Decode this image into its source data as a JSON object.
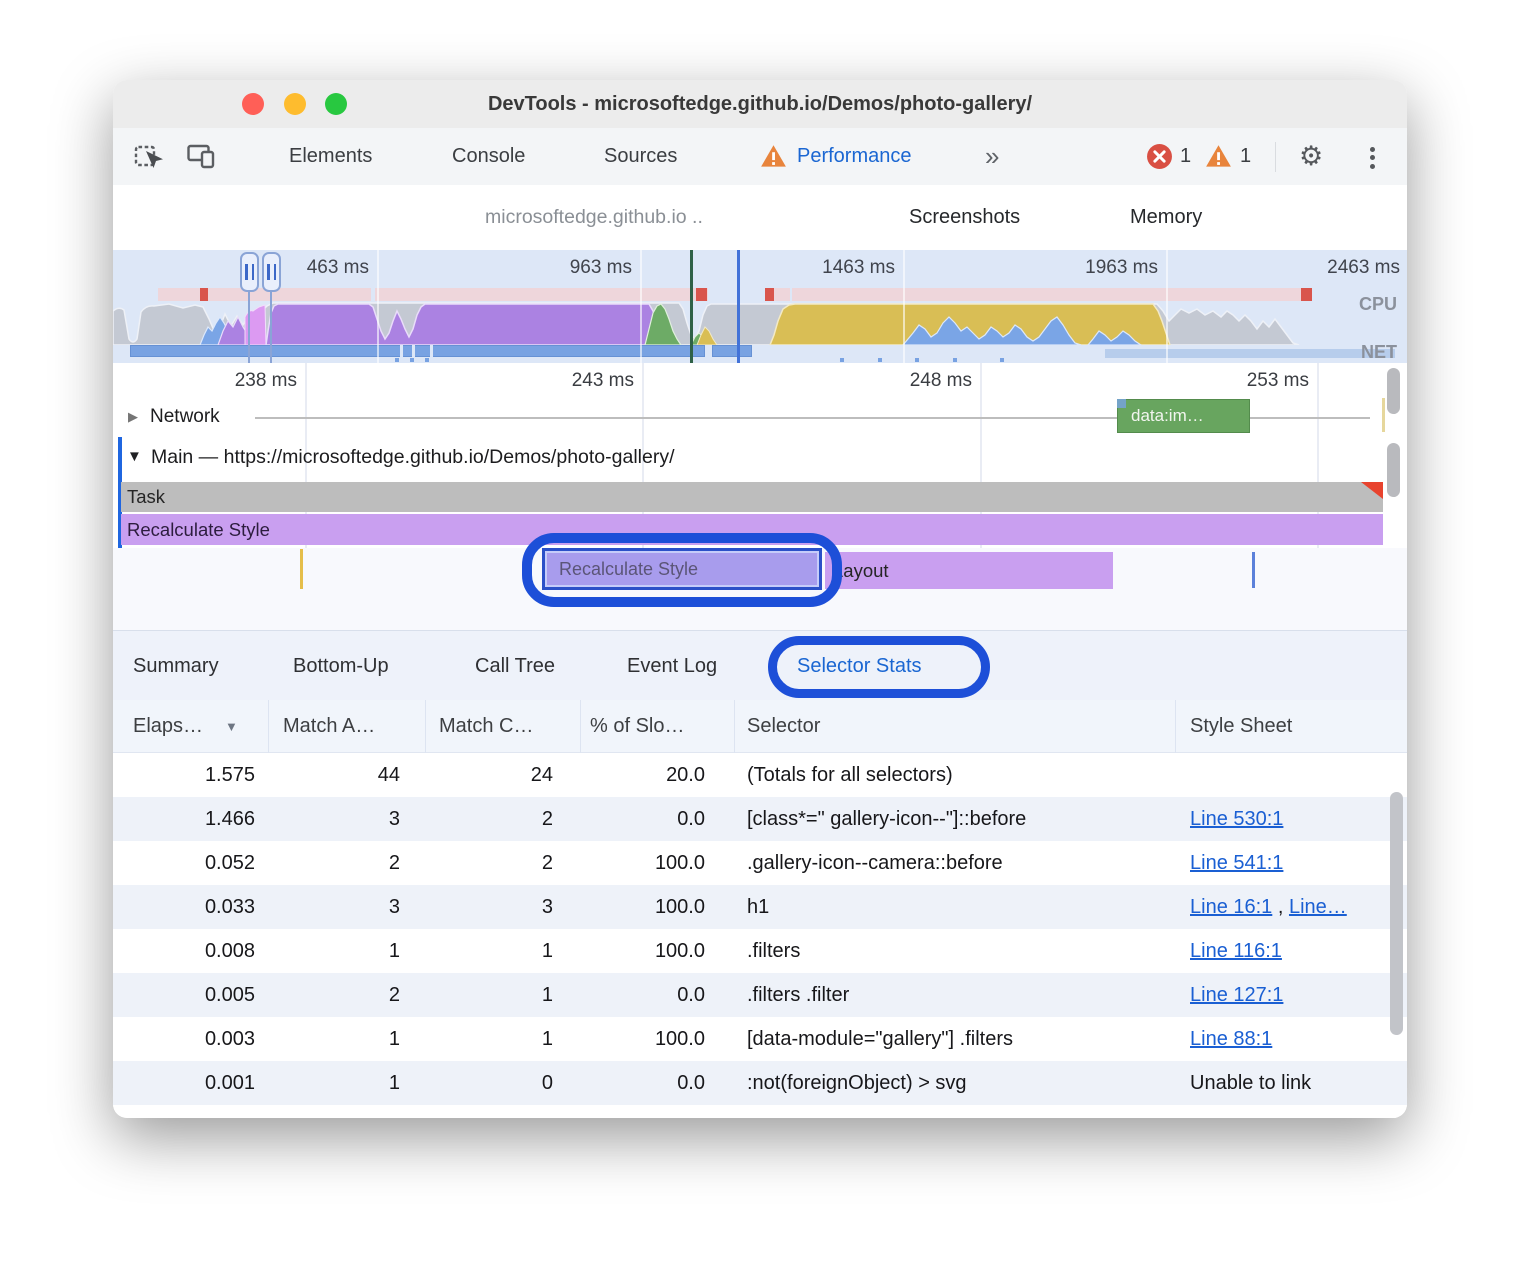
{
  "window_title": "DevTools - microsoftedge.github.io/Demos/photo-gallery/",
  "main_tabs": {
    "items": [
      "Elements",
      "Console",
      "Sources",
      "Performance"
    ],
    "overflow": "»",
    "error_count": "1",
    "warning_count": "1"
  },
  "perf_toolbar": {
    "history": "microsoftedge.github.io ..",
    "screenshots_label": "Screenshots",
    "memory_label": "Memory"
  },
  "overview": {
    "ticks": [
      "463 ms",
      "963 ms",
      "1463 ms",
      "1963 ms",
      "2463 ms"
    ],
    "cpu_label": "CPU",
    "net_label": "NET"
  },
  "flame": {
    "ticks": [
      "238 ms",
      "243 ms",
      "248 ms",
      "253 ms"
    ],
    "network_label": "Network",
    "network_request": "data:im…",
    "main_label": "Main — https://microsoftedge.github.io/Demos/photo-gallery/",
    "task_label": "Task",
    "recalc_label": "Recalculate Style",
    "selected_event": "Recalculate Style",
    "layout_label": "Layout"
  },
  "bottom_tabs": [
    "Summary",
    "Bottom-Up",
    "Call Tree",
    "Event Log",
    "Selector Stats"
  ],
  "table": {
    "headers": [
      "Elaps…",
      "Match A…",
      "Match C…",
      "% of Slo…",
      "Selector",
      "Style Sheet"
    ],
    "rows": [
      {
        "elapsed": "1.575",
        "attempts": "44",
        "count": "24",
        "slow": "20.0",
        "selector": "(Totals for all selectors)",
        "links": [],
        "sheet_text": ""
      },
      {
        "elapsed": "1.466",
        "attempts": "3",
        "count": "2",
        "slow": "0.0",
        "selector": "[class*=\" gallery-icon--\"]::before",
        "links": [
          "Line 530:1"
        ],
        "sheet_text": ""
      },
      {
        "elapsed": "0.052",
        "attempts": "2",
        "count": "2",
        "slow": "100.0",
        "selector": ".gallery-icon--camera::before",
        "links": [
          "Line 541:1"
        ],
        "sheet_text": ""
      },
      {
        "elapsed": "0.033",
        "attempts": "3",
        "count": "3",
        "slow": "100.0",
        "selector": "h1",
        "links": [
          "Line 16:1",
          "Line…"
        ],
        "sheet_text": ""
      },
      {
        "elapsed": "0.008",
        "attempts": "1",
        "count": "1",
        "slow": "100.0",
        "selector": ".filters",
        "links": [
          "Line 116:1"
        ],
        "sheet_text": ""
      },
      {
        "elapsed": "0.005",
        "attempts": "2",
        "count": "1",
        "slow": "0.0",
        "selector": ".filters .filter",
        "links": [
          "Line 127:1"
        ],
        "sheet_text": ""
      },
      {
        "elapsed": "0.003",
        "attempts": "1",
        "count": "1",
        "slow": "100.0",
        "selector": "[data-module=\"gallery\"] .filters",
        "links": [
          "Line 88:1"
        ],
        "sheet_text": ""
      },
      {
        "elapsed": "0.001",
        "attempts": "1",
        "count": "0",
        "slow": "0.0",
        "selector": ":not(foreignObject) > svg",
        "links": [],
        "sheet_text": "Unable to link"
      }
    ]
  },
  "colors": {
    "accent_blue": "#1a66d2",
    "annotation_blue": "#1d4fd8",
    "link_blue": "#1a5fd3",
    "error_red": "#d94f43",
    "warning_orange": "#e8843c",
    "cpu_rendering_purple": "#ab82e2",
    "cpu_scripting_yellow": "#d9be55",
    "cpu_painting_green": "#6dab66",
    "cpu_loading_blue": "#7aa5e6",
    "cpu_system_gray": "#c4c9d3"
  }
}
